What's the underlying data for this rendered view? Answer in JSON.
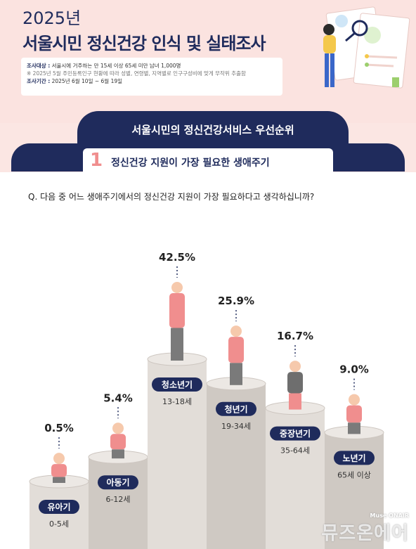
{
  "header": {
    "year": "2025년",
    "title": "서울시민 정신건강 인식 및 실태조사",
    "subject_label": "조사대상 :",
    "subject_text": "서울시에 거주하는 만 15세 이상 65세 미만 남녀 1,000명",
    "subject_note": "※ 2025년 5월 주민등록인구 현황에 따라 성별, 연령별, 지역별로 인구구성비에 맞게 무작위 추출함",
    "period_label": "조사기간 :",
    "period_text": "2025년 6월 10일 ~ 6월 19일"
  },
  "section": {
    "title": "서울시민의 정신건강서비스 우선순위",
    "number": "1",
    "subtitle": "정신건강 지원이 가장 필요한 생애주기"
  },
  "question": "Q. 다음 중 어느 생애주기에서의 정신건강 지원이 가장 필요하다고 생각하십니까?",
  "chart_data": {
    "type": "bar",
    "categories": [
      "유아기",
      "아동기",
      "청소년기",
      "청년기",
      "중장년기",
      "노년기"
    ],
    "age_ranges": [
      "0-5세",
      "6-12세",
      "13-18세",
      "19-34세",
      "35-64세",
      "65세 이상"
    ],
    "values": [
      0.5,
      5.4,
      42.5,
      25.9,
      16.7,
      9.0
    ],
    "value_labels": [
      "0.5%",
      "5.4%",
      "42.5%",
      "25.9%",
      "16.7%",
      "9.0%"
    ],
    "unit": "%"
  },
  "colors": {
    "navy": "#1f2b5c",
    "coral": "#f08e8e",
    "pink_bg": "#fbe3e0",
    "pedestal": "#d9d4cf"
  },
  "watermark": {
    "brand": "뮤즈온에어",
    "sub": "Muse ONAIR"
  }
}
